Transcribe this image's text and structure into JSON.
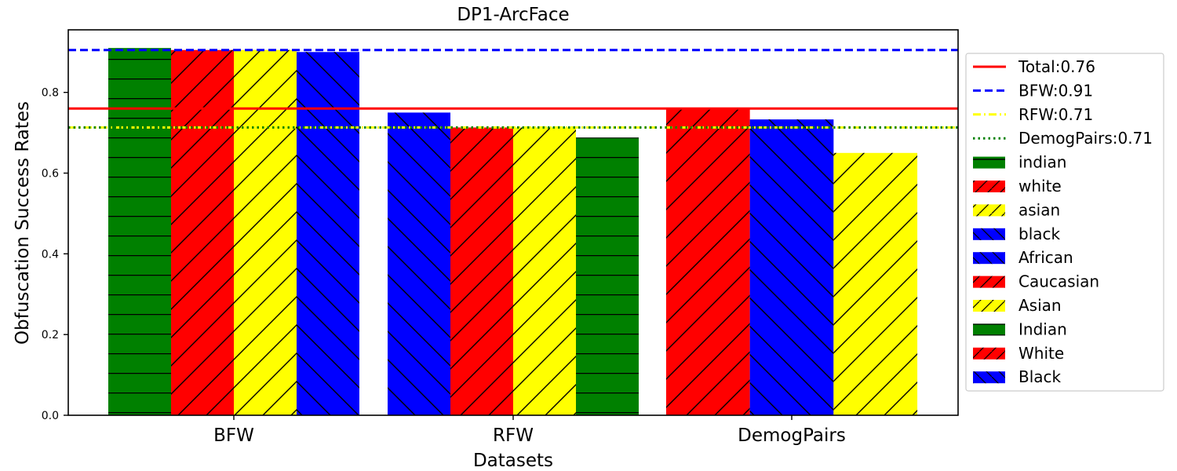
{
  "chart_data": {
    "type": "bar",
    "title": "DP1-ArcFace",
    "xlabel": "Datasets",
    "ylabel": "Obfuscation Success Rates",
    "ylim": [
      0,
      0.955
    ],
    "yticks": [
      "0.0",
      "0.2",
      "0.4",
      "0.6",
      "0.8"
    ],
    "categories": [
      "BFW",
      "RFW",
      "DemogPairs"
    ],
    "groups": [
      {
        "category": "BFW",
        "bars": [
          {
            "series": "indian",
            "value": 0.91,
            "color": "#008000",
            "hatch": "horizontal"
          },
          {
            "series": "white",
            "value": 0.905,
            "color": "#ff0000",
            "hatch": "forward"
          },
          {
            "series": "asian",
            "value": 0.905,
            "color": "#ffff00",
            "hatch": "forward"
          },
          {
            "series": "black",
            "value": 0.9,
            "color": "#0000ff",
            "hatch": "back"
          }
        ]
      },
      {
        "category": "RFW",
        "bars": [
          {
            "series": "African",
            "value": 0.75,
            "color": "#0000ff",
            "hatch": "back"
          },
          {
            "series": "Caucasian",
            "value": 0.713,
            "color": "#ff0000",
            "hatch": "forward"
          },
          {
            "series": "Asian",
            "value": 0.713,
            "color": "#ffff00",
            "hatch": "forward"
          },
          {
            "series": "Indian",
            "value": 0.688,
            "color": "#008000",
            "hatch": "horizontal"
          }
        ]
      },
      {
        "category": "DemogPairs",
        "bars": [
          {
            "series": "White",
            "value": 0.762,
            "color": "#ff0000",
            "hatch": "forward"
          },
          {
            "series": "Black",
            "value": 0.733,
            "color": "#0000ff",
            "hatch": "back"
          },
          {
            "series": "Asian",
            "value": 0.65,
            "color": "#ffff00",
            "hatch": "forward"
          }
        ]
      }
    ],
    "reference_lines": [
      {
        "label": "Total:0.76",
        "value": 0.76,
        "color": "#ff0000",
        "style": "solid"
      },
      {
        "label": "BFW:0.91",
        "value": 0.905,
        "color": "#0000ff",
        "style": "dashed"
      },
      {
        "label": "RFW:0.71",
        "value": 0.713,
        "color": "#ffff00",
        "style": "dashdot"
      },
      {
        "label": "DemogPairs:0.71",
        "value": 0.713,
        "color": "#008000",
        "style": "dotted"
      }
    ],
    "legend": {
      "placement": "right",
      "entries": [
        {
          "label": "Total:0.76",
          "kind": "line",
          "color": "#ff0000",
          "style": "solid"
        },
        {
          "label": "BFW:0.91",
          "kind": "line",
          "color": "#0000ff",
          "style": "dashed"
        },
        {
          "label": "RFW:0.71",
          "kind": "line",
          "color": "#ffff00",
          "style": "dashdot"
        },
        {
          "label": "DemogPairs:0.71",
          "kind": "line",
          "color": "#008000",
          "style": "dotted"
        },
        {
          "label": "indian",
          "kind": "patch",
          "color": "#008000",
          "hatch": "horizontal"
        },
        {
          "label": "white",
          "kind": "patch",
          "color": "#ff0000",
          "hatch": "forward"
        },
        {
          "label": "asian",
          "kind": "patch",
          "color": "#ffff00",
          "hatch": "forward"
        },
        {
          "label": "black",
          "kind": "patch",
          "color": "#0000ff",
          "hatch": "back"
        },
        {
          "label": "African",
          "kind": "patch",
          "color": "#0000ff",
          "hatch": "back"
        },
        {
          "label": "Caucasian",
          "kind": "patch",
          "color": "#ff0000",
          "hatch": "forward"
        },
        {
          "label": "Asian",
          "kind": "patch",
          "color": "#ffff00",
          "hatch": "forward"
        },
        {
          "label": "Indian",
          "kind": "patch",
          "color": "#008000",
          "hatch": "horizontal"
        },
        {
          "label": "White",
          "kind": "patch",
          "color": "#ff0000",
          "hatch": "forward"
        },
        {
          "label": "Black",
          "kind": "patch",
          "color": "#0000ff",
          "hatch": "back"
        }
      ]
    },
    "grid": false
  }
}
